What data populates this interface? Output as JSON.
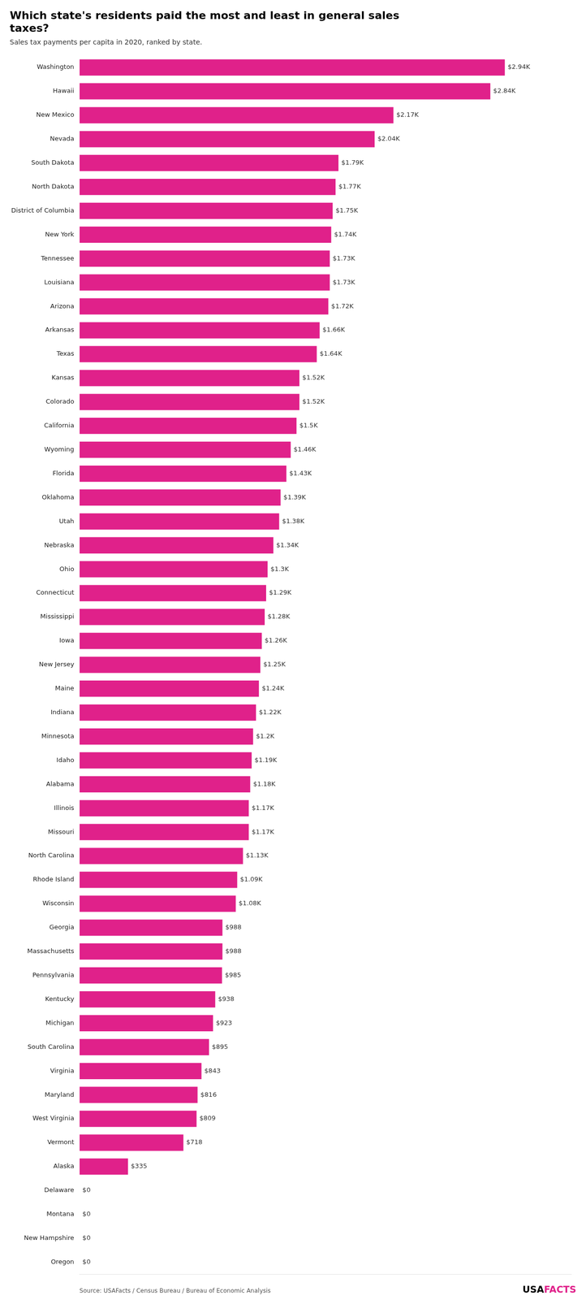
{
  "chart_data": {
    "type": "bar",
    "orientation": "horizontal",
    "title": [
      "Which state's residents paid the most and least in general sales",
      "taxes?"
    ],
    "subtitle": "Sales tax payments per capita in 2020, ranked by state.",
    "annotations": [
      "Source: USAFacts / Census Bureau / Bureau of Economic Analysis",
      "USA",
      "FACTS"
    ],
    "color": "#E0218A",
    "categories": [
      "Washington",
      "Hawaii",
      "New Mexico",
      "Nevada",
      "South Dakota",
      "North Dakota",
      "District of Columbia",
      "New York",
      "Tennessee",
      "Louisiana",
      "Arizona",
      "Arkansas",
      "Texas",
      "Kansas",
      "Colorado",
      "California",
      "Wyoming",
      "Florida",
      "Oklahoma",
      "Utah",
      "Nebraska",
      "Ohio",
      "Connecticut",
      "Mississippi",
      "Iowa",
      "New Jersey",
      "Maine",
      "Indiana",
      "Minnesota",
      "Idaho",
      "Alabama",
      "Illinois",
      "Missouri",
      "North Carolina",
      "Rhode Island",
      "Wisconsin",
      "Georgia",
      "Massachusetts",
      "Pennsylvania",
      "Kentucky",
      "Michigan",
      "South Carolina",
      "Virginia",
      "Maryland",
      "West Virginia",
      "Vermont",
      "Alaska",
      "Delaware",
      "Montana",
      "New Hampshire",
      "Oregon"
    ],
    "values": [
      2940,
      2840,
      2170,
      2040,
      1790,
      1770,
      1750,
      1740,
      1730,
      1730,
      1720,
      1660,
      1640,
      1520,
      1520,
      1500,
      1460,
      1430,
      1390,
      1380,
      1340,
      1300,
      1290,
      1280,
      1260,
      1250,
      1240,
      1220,
      1200,
      1190,
      1180,
      1170,
      1170,
      1130,
      1090,
      1080,
      988,
      988,
      985,
      938,
      923,
      895,
      843,
      816,
      809,
      718,
      335,
      0,
      0,
      0,
      0
    ],
    "value_labels": [
      "$2.94K",
      "$2.84K",
      "$2.17K",
      "$2.04K",
      "$1.79K",
      "$1.77K",
      "$1.75K",
      "$1.74K",
      "$1.73K",
      "$1.73K",
      "$1.72K",
      "$1.66K",
      "$1.64K",
      "$1.52K",
      "$1.52K",
      "$1.5K",
      "$1.46K",
      "$1.43K",
      "$1.39K",
      "$1.38K",
      "$1.34K",
      "$1.3K",
      "$1.29K",
      "$1.28K",
      "$1.26K",
      "$1.25K",
      "$1.24K",
      "$1.22K",
      "$1.2K",
      "$1.19K",
      "$1.18K",
      "$1.17K",
      "$1.17K",
      "$1.13K",
      "$1.09K",
      "$1.08K",
      "$988",
      "$988",
      "$985",
      "$938",
      "$923",
      "$895",
      "$843",
      "$816",
      "$809",
      "$718",
      "$335",
      "$0",
      "$0",
      "$0",
      "$0"
    ],
    "data_labels": true,
    "xlim": [
      0,
      3400
    ],
    "tick_labels": "y",
    "grid": false
  }
}
